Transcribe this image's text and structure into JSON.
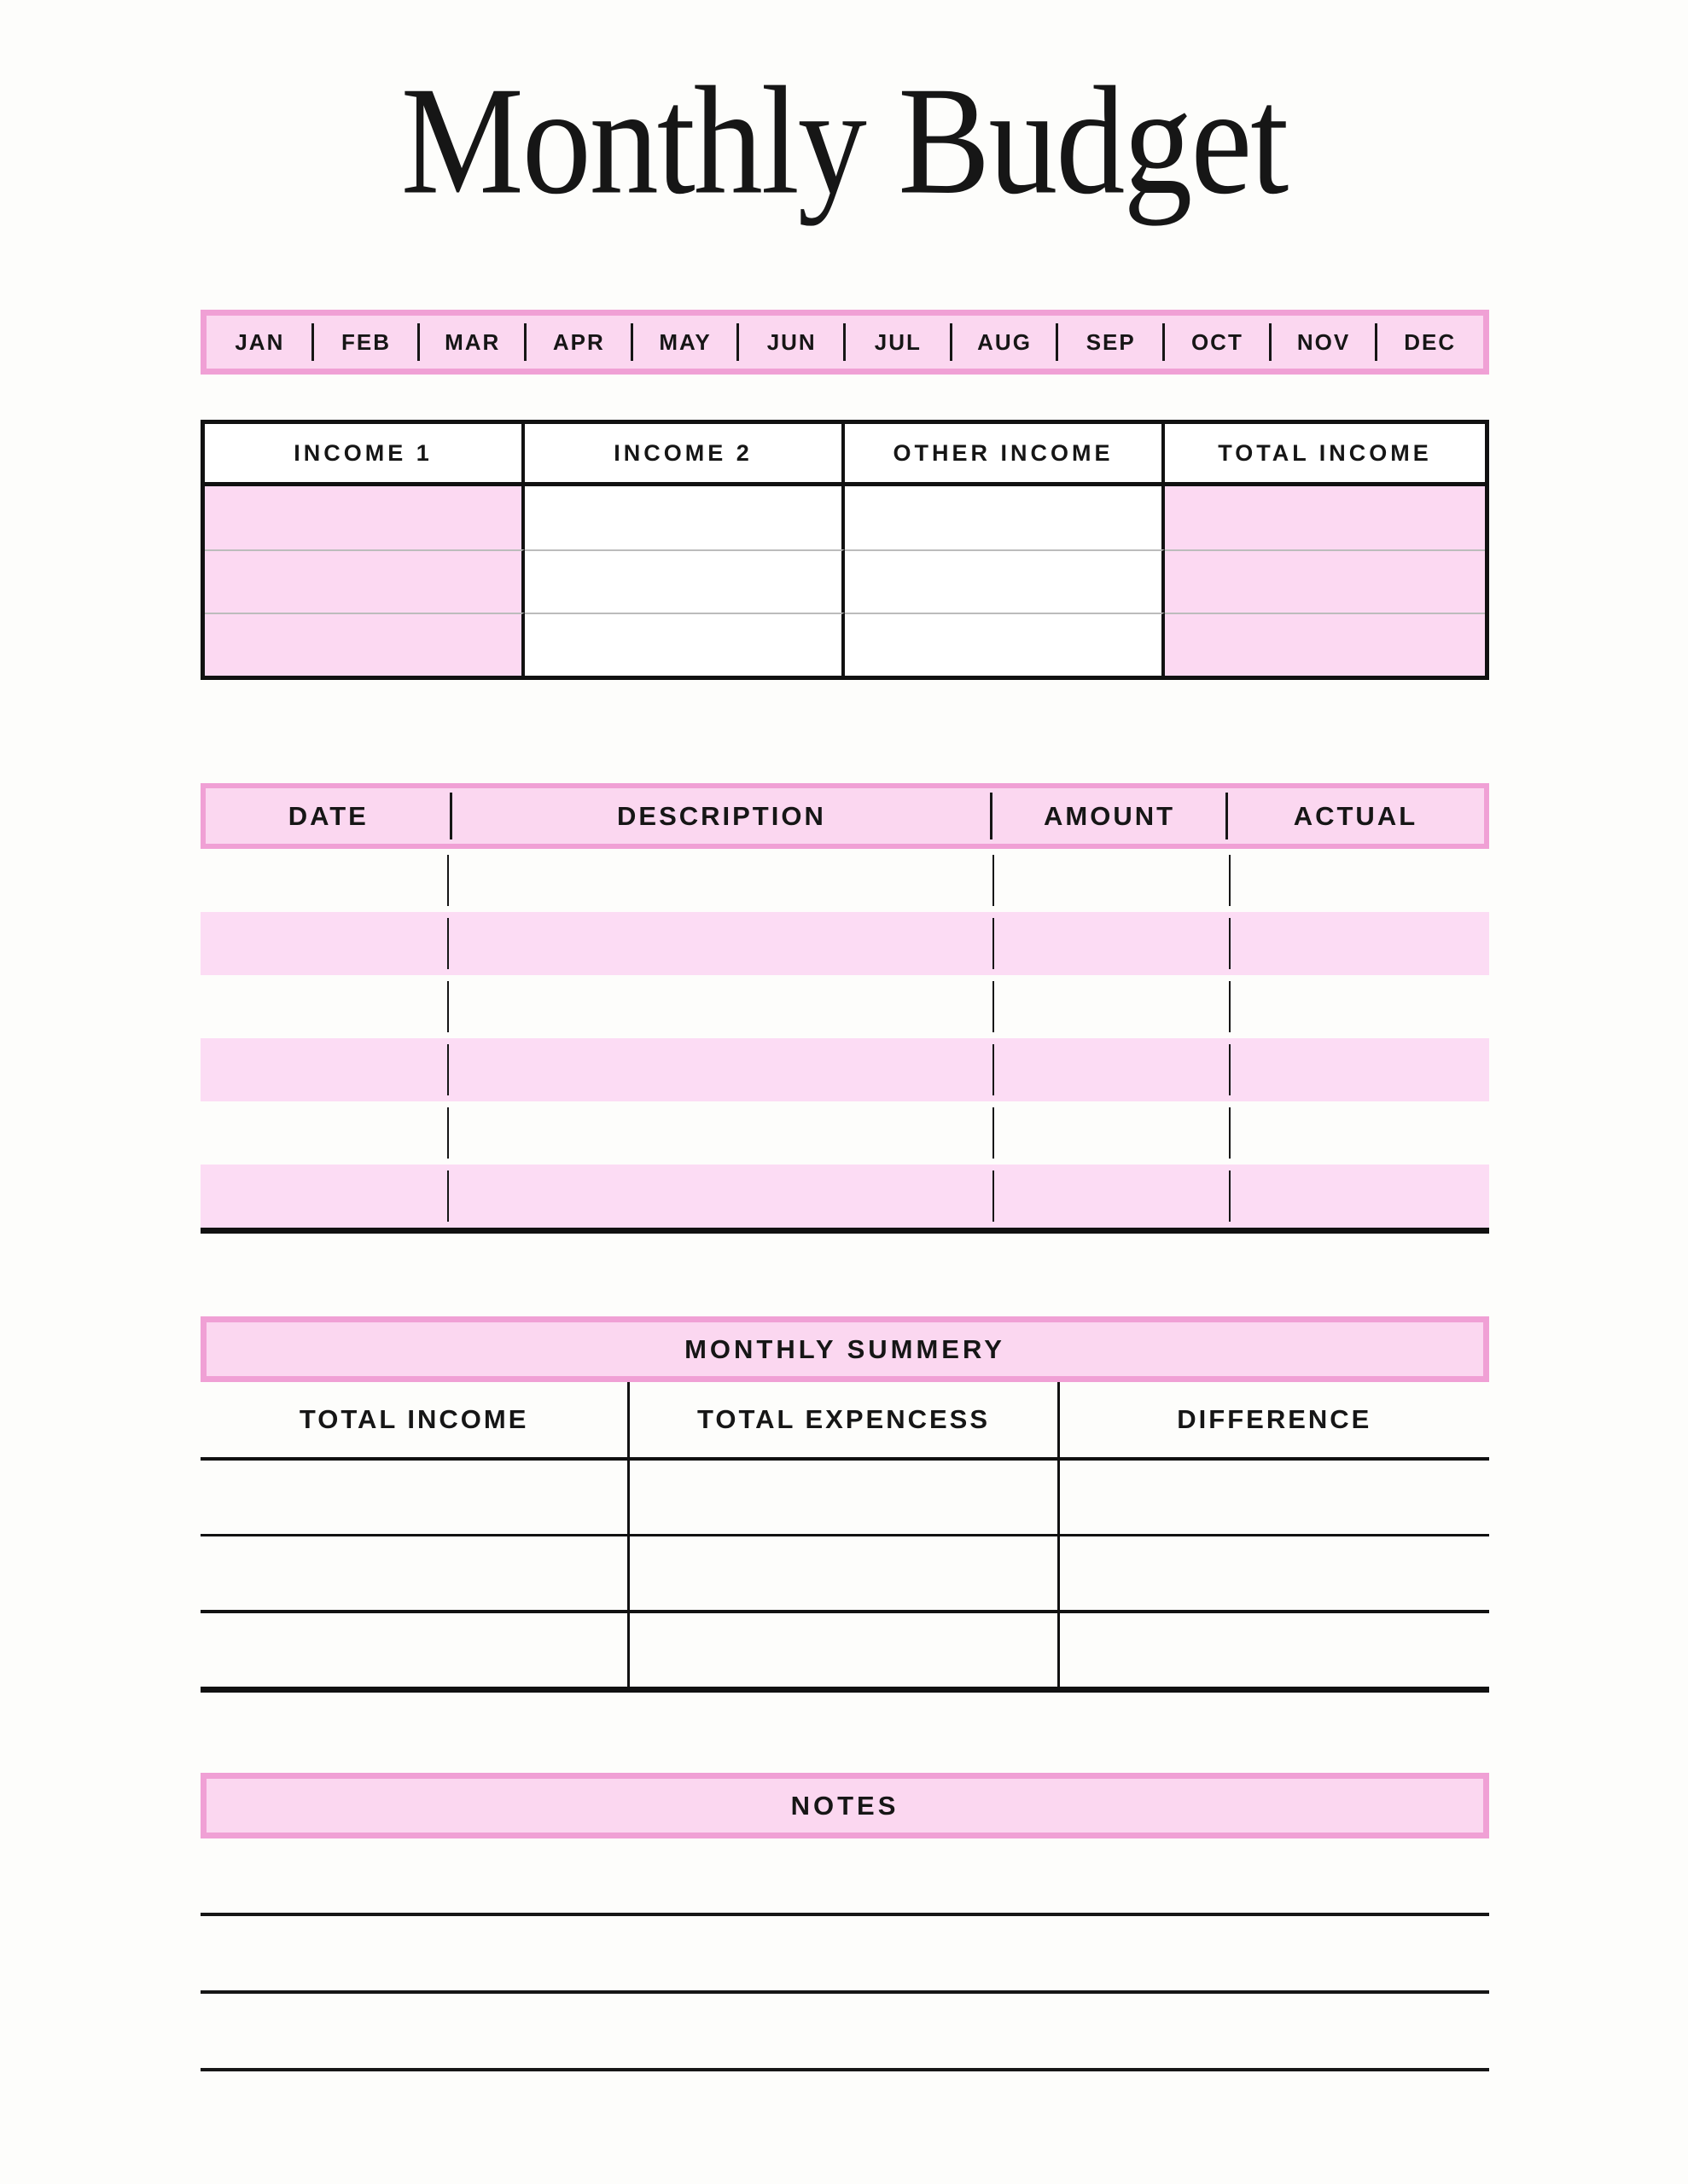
{
  "title": "Monthly Budget",
  "colors": {
    "page_background": "#fdfdfb",
    "pink_fill": "#fbd7f0",
    "pink_row_fill": "#fcdcf4",
    "pink_cell_fill": "#fcd9f2",
    "pink_border": "#f0a0d5",
    "ink": "#161616",
    "light_grid_line": "#bcbcbc"
  },
  "month_bar": {
    "months": [
      "JAN",
      "FEB",
      "MAR",
      "APR",
      "MAY",
      "JUN",
      "JUL",
      "AUG",
      "SEP",
      "OCT",
      "NOV",
      "DEC"
    ]
  },
  "income_table": {
    "headers": [
      "INCOME 1",
      "INCOME 2",
      "OTHER INCOME",
      "TOTAL INCOME"
    ],
    "row_count": 3,
    "cell_values": ""
  },
  "expense_table": {
    "headers": [
      "DATE",
      "DESCRIPTION",
      "AMOUNT",
      "ACTUAL"
    ],
    "row_count": 6,
    "cell_values": ""
  },
  "summary_table": {
    "title": "MONTHLY SUMMERY",
    "headers": [
      "TOTAL INCOME",
      "TOTAL EXPENCESS",
      "DIFFERENCE"
    ],
    "row_count": 3,
    "cell_values": ""
  },
  "notes": {
    "title": "NOTES",
    "line_count": 3
  }
}
